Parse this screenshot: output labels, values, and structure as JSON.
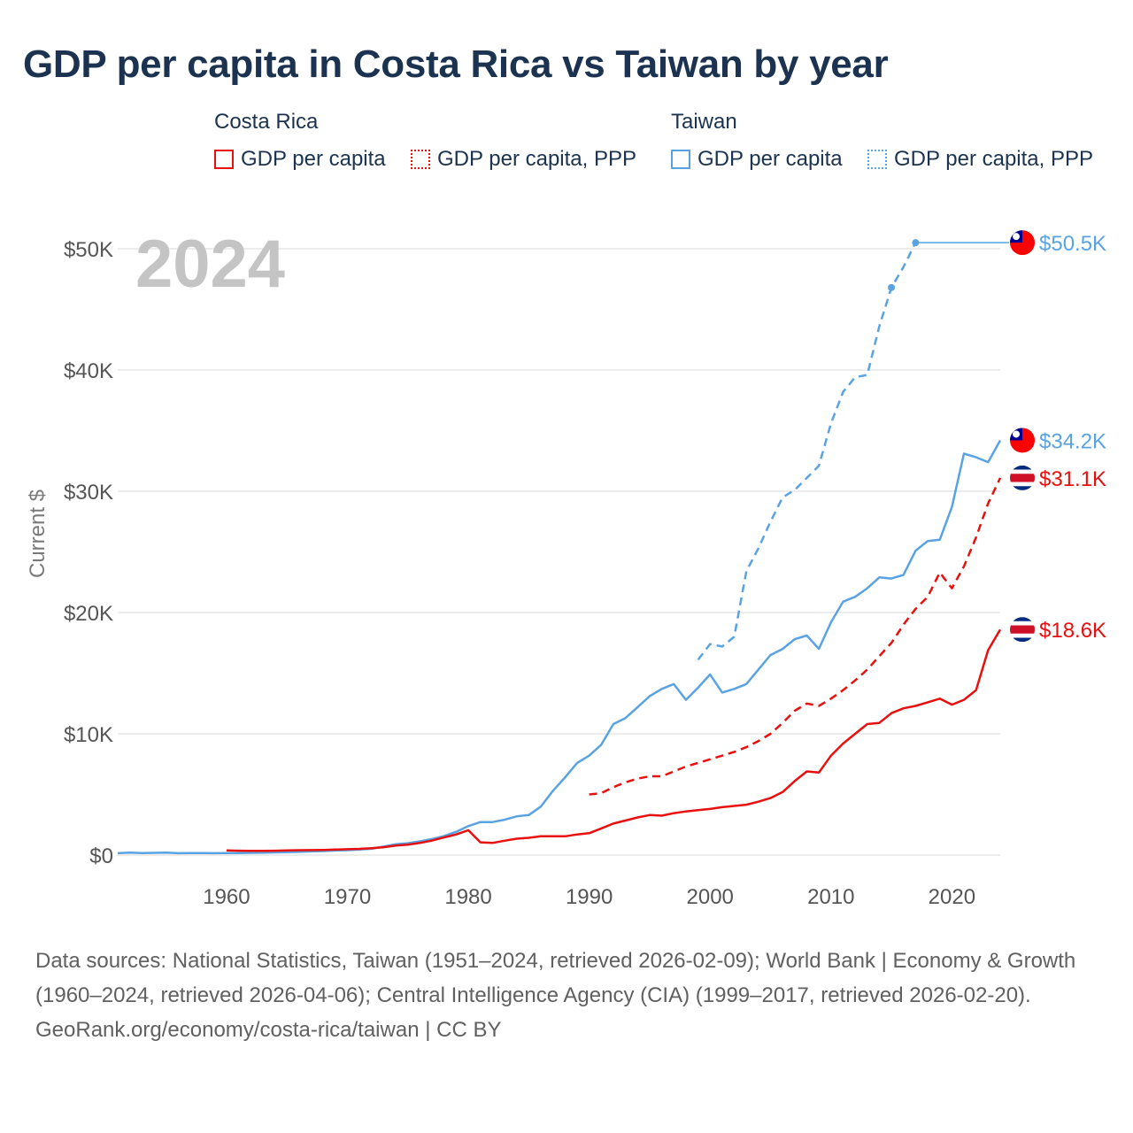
{
  "title": "GDP per capita in Costa Rica vs Taiwan by year",
  "legend": {
    "costa_rica": {
      "title": "Costa Rica",
      "gdp": "GDP per capita",
      "ppp": "GDP per capita, PPP"
    },
    "taiwan": {
      "title": "Taiwan",
      "gdp": "GDP per capita",
      "ppp": "GDP per capita, PPP"
    }
  },
  "footer": {
    "sources": "Data sources: National Statistics, Taiwan (1951–2024, retrieved 2026-02-09); World Bank | Economy & Growth (1960–2024, retrieved 2026-04-06); Central Intelligence Agency (CIA) (1999–2017, retrieved 2026-02-20).",
    "credit": "GeoRank.org/economy/costa-rica/taiwan | CC BY"
  },
  "colors": {
    "costa_rica": "#e8100f",
    "taiwan": "#5aa3e3",
    "grid": "#e6e6e6",
    "axis_text": "#555555",
    "year_label": "#c4c4c4"
  },
  "chart_data": {
    "type": "line",
    "year_label": "2024",
    "ylabel": "Current $",
    "xlim": [
      1951,
      2024
    ],
    "ylim": [
      0,
      50000
    ],
    "y_ticks": [
      0,
      10000,
      20000,
      30000,
      40000,
      50000
    ],
    "y_tick_labels": [
      "$0",
      "$10K",
      "$20K",
      "$30K",
      "$40K",
      "$50K"
    ],
    "x_ticks": [
      1960,
      1970,
      1980,
      1990,
      2000,
      2010,
      2020
    ],
    "x_tick_labels": [
      "1960",
      "1970",
      "1980",
      "1990",
      "2000",
      "2010",
      "2020"
    ],
    "series": [
      {
        "name": "Taiwan GDP per capita",
        "country": "taiwan",
        "dash": false,
        "end_label": "$34.2K",
        "x": [
          1951,
          1952,
          1953,
          1954,
          1955,
          1956,
          1957,
          1958,
          1959,
          1960,
          1961,
          1962,
          1963,
          1964,
          1965,
          1966,
          1967,
          1968,
          1969,
          1970,
          1971,
          1972,
          1973,
          1974,
          1975,
          1976,
          1977,
          1978,
          1979,
          1980,
          1981,
          1982,
          1983,
          1984,
          1985,
          1986,
          1987,
          1988,
          1989,
          1990,
          1991,
          1992,
          1993,
          1994,
          1995,
          1996,
          1997,
          1998,
          1999,
          2000,
          2001,
          2002,
          2003,
          2004,
          2005,
          2006,
          2007,
          2008,
          2009,
          2010,
          2011,
          2012,
          2013,
          2014,
          2015,
          2016,
          2017,
          2018,
          2019,
          2020,
          2021,
          2022,
          2023,
          2024
        ],
        "values": [
          150,
          200,
          170,
          180,
          200,
          150,
          160,
          170,
          150,
          160,
          170,
          180,
          190,
          220,
          230,
          260,
          300,
          330,
          370,
          400,
          450,
          520,
          700,
          900,
          980,
          1130,
          1320,
          1580,
          1920,
          2390,
          2720,
          2720,
          2910,
          3190,
          3300,
          4000,
          5300,
          6400,
          7600,
          8200,
          9100,
          10800,
          11300,
          12200,
          13100,
          13700,
          14100,
          12800,
          13800,
          14900,
          13400,
          13700,
          14100,
          15300,
          16500,
          17000,
          17800,
          18100,
          17000,
          19200,
          20900,
          21300,
          22000,
          22900,
          22800,
          23100,
          25100,
          25900,
          26000,
          28700,
          33100,
          32800,
          32400,
          34200
        ]
      },
      {
        "name": "Taiwan GDP per capita, PPP",
        "country": "taiwan",
        "dash": true,
        "end_label": "$50.5K",
        "x": [
          1999,
          2000,
          2001,
          2002,
          2003,
          2004,
          2005,
          2006,
          2007,
          2008,
          2009,
          2010,
          2011,
          2012,
          2013,
          2014,
          2015,
          2016,
          2017
        ],
        "values": [
          16100,
          17400,
          17200,
          18000,
          23400,
          25300,
          27500,
          29500,
          30100,
          31100,
          32100,
          35600,
          38200,
          39400,
          39600,
          43600,
          46800,
          48500,
          50500
        ]
      },
      {
        "name": "Costa Rica GDP per capita",
        "country": "costa_rica",
        "dash": false,
        "end_label": "$18.6K",
        "x": [
          1960,
          1961,
          1962,
          1963,
          1964,
          1965,
          1966,
          1967,
          1968,
          1969,
          1970,
          1971,
          1972,
          1973,
          1974,
          1975,
          1976,
          1977,
          1978,
          1979,
          1980,
          1981,
          1982,
          1983,
          1984,
          1985,
          1986,
          1987,
          1988,
          1989,
          1990,
          1991,
          1992,
          1993,
          1994,
          1995,
          1996,
          1997,
          1998,
          1999,
          2000,
          2001,
          2002,
          2003,
          2004,
          2005,
          2006,
          2007,
          2008,
          2009,
          2010,
          2011,
          2012,
          2013,
          2014,
          2015,
          2016,
          2017,
          2018,
          2019,
          2020,
          2021,
          2022,
          2023,
          2024
        ],
        "values": [
          380,
          360,
          340,
          350,
          360,
          380,
          400,
          410,
          420,
          450,
          480,
          510,
          560,
          650,
          780,
          860,
          1000,
          1200,
          1450,
          1700,
          2050,
          1050,
          1000,
          1180,
          1350,
          1420,
          1550,
          1550,
          1550,
          1700,
          1800,
          2200,
          2600,
          2850,
          3100,
          3300,
          3250,
          3450,
          3600,
          3700,
          3800,
          3950,
          4050,
          4150,
          4400,
          4700,
          5200,
          6100,
          6900,
          6800,
          8200,
          9200,
          10000,
          10800,
          10900,
          11700,
          12100,
          12300,
          12600,
          12900,
          12400,
          12800,
          13600,
          16900,
          18600
        ]
      },
      {
        "name": "Costa Rica GDP per capita, PPP",
        "country": "costa_rica",
        "dash": true,
        "end_label": "$31.1K",
        "x": [
          1990,
          1991,
          1992,
          1993,
          1994,
          1995,
          1996,
          1997,
          1998,
          1999,
          2000,
          2001,
          2002,
          2003,
          2004,
          2005,
          2006,
          2007,
          2008,
          2009,
          2010,
          2011,
          2012,
          2013,
          2014,
          2015,
          2016,
          2017,
          2018,
          2019,
          2020,
          2021,
          2022,
          2023,
          2024
        ],
        "values": [
          5000,
          5100,
          5600,
          6000,
          6300,
          6500,
          6500,
          6900,
          7300,
          7600,
          7900,
          8200,
          8500,
          8900,
          9400,
          10000,
          10900,
          11900,
          12500,
          12300,
          12900,
          13600,
          14400,
          15300,
          16400,
          17500,
          19000,
          20300,
          21300,
          23300,
          22000,
          23800,
          26200,
          29000,
          31100
        ]
      }
    ]
  }
}
